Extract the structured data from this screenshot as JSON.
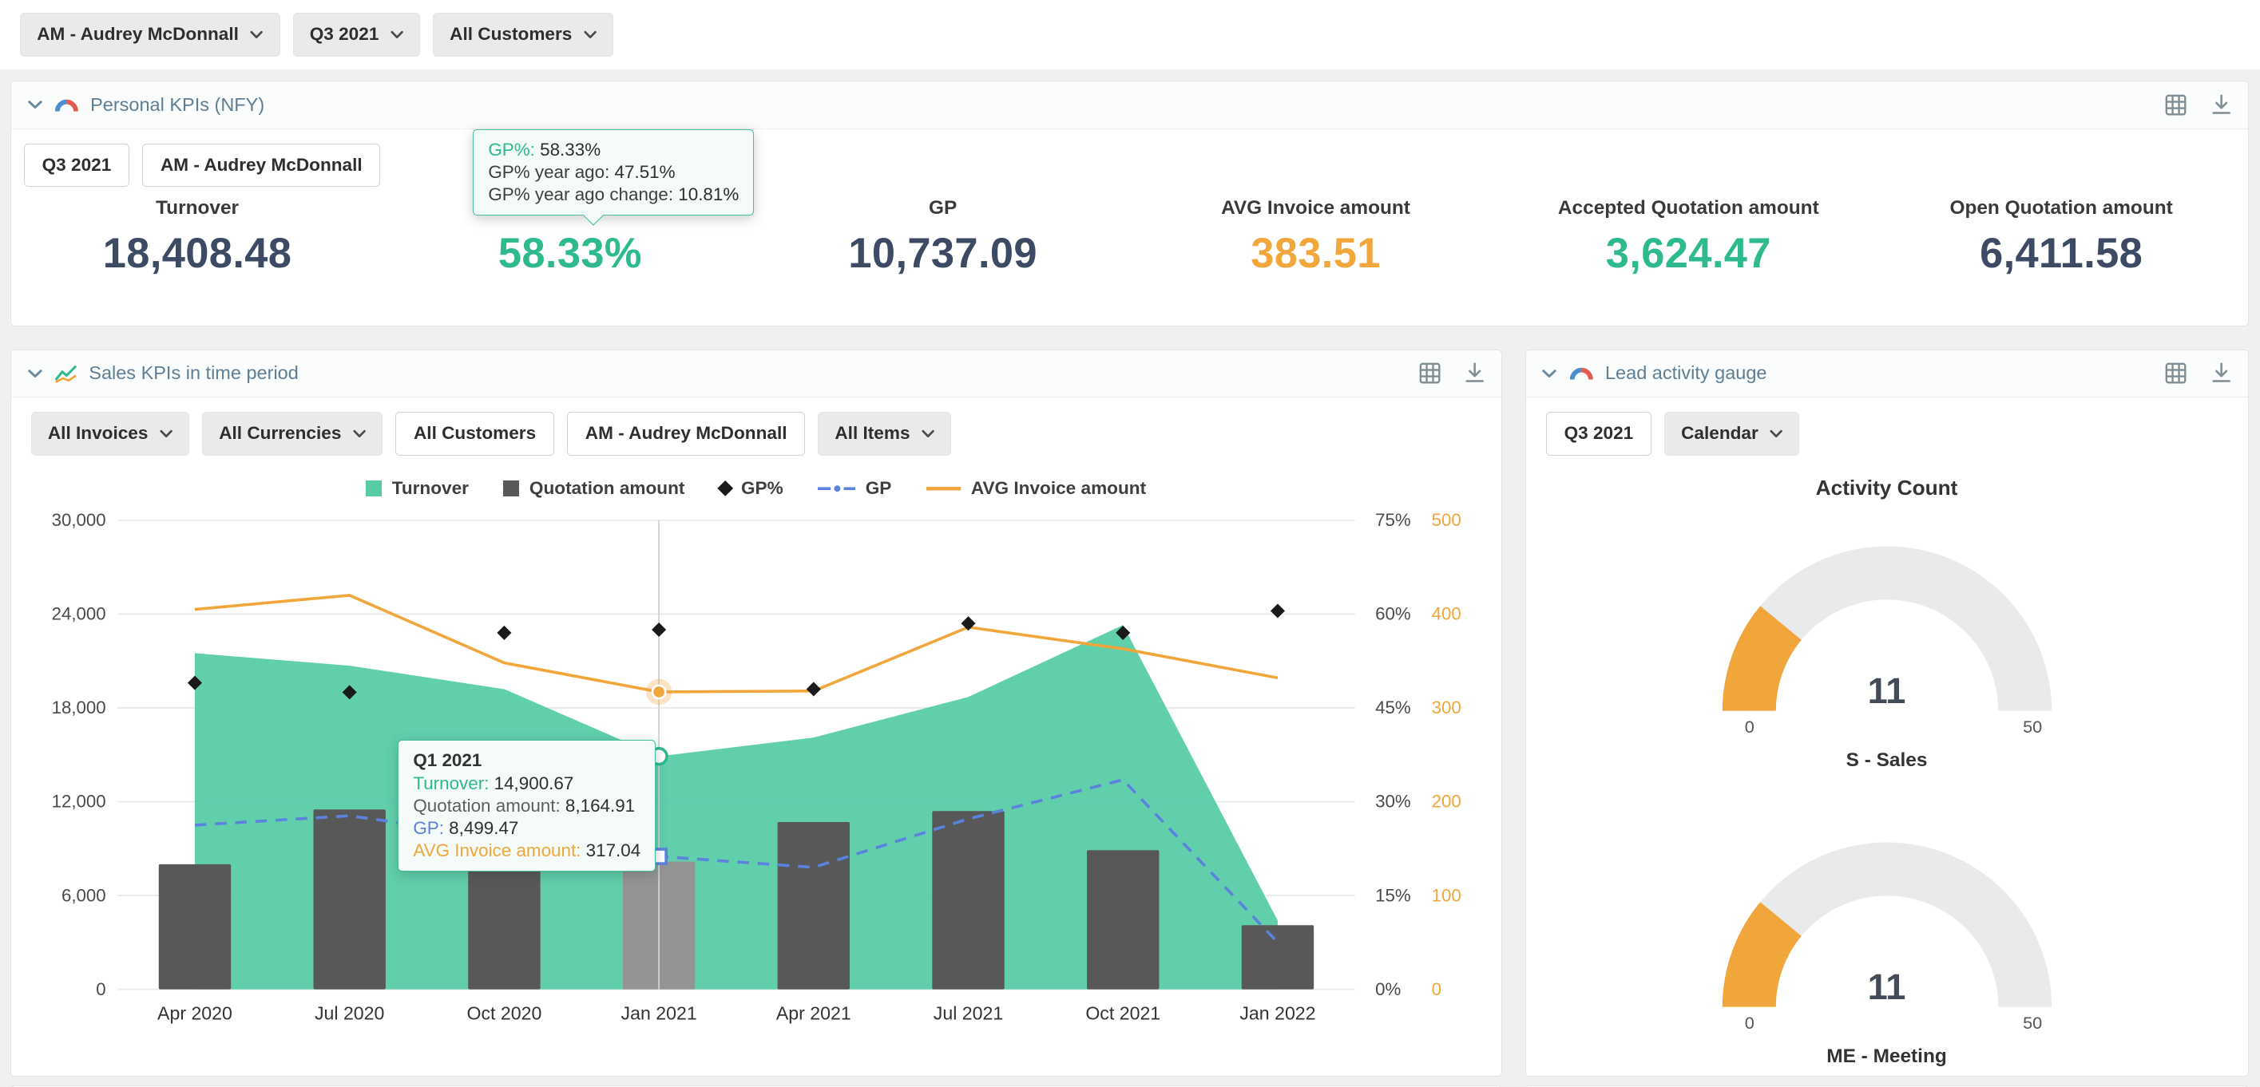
{
  "topbar": {
    "filters": [
      {
        "name": "account-manager-filter",
        "label": "AM - Audrey McDonnall"
      },
      {
        "name": "period-filter",
        "label": "Q3 2021"
      },
      {
        "name": "customers-filter",
        "label": "All Customers"
      }
    ]
  },
  "kpi_panel": {
    "title": "Personal KPIs (NFY)",
    "chips": [
      "Q3 2021",
      "AM - Audrey McDonnall"
    ],
    "tooltip": {
      "rows": [
        {
          "label": "GP%:",
          "value": "58.33%",
          "color": "#2eb98f"
        },
        {
          "label": "GP% year ago:",
          "value": "47.51%",
          "color": "#3f3f3f"
        },
        {
          "label": "GP% year ago change:",
          "value": "10.81%",
          "color": "#3f3f3f"
        }
      ]
    },
    "kpis": [
      {
        "name": "kpi-turnover",
        "label": "Turnover",
        "value": "18,408.48",
        "color": "dark"
      },
      {
        "name": "kpi-gp-percent",
        "label": "GP%",
        "value": "58.33%",
        "color": "teal"
      },
      {
        "name": "kpi-gp",
        "label": "GP",
        "value": "10,737.09",
        "color": "dark"
      },
      {
        "name": "kpi-avg-invoice",
        "label": "AVG Invoice amount",
        "value": "383.51",
        "color": "orange"
      },
      {
        "name": "kpi-accepted-quotation",
        "label": "Accepted Quotation amount",
        "value": "3,624.47",
        "color": "teal"
      },
      {
        "name": "kpi-open-quotation",
        "label": "Open Quotation amount",
        "value": "6,411.58",
        "color": "dark"
      }
    ]
  },
  "sales_panel": {
    "title": "Sales KPIs in time period",
    "filters": [
      {
        "name": "invoices-filter",
        "label": "All Invoices",
        "type": "dropdown"
      },
      {
        "name": "currencies-filter",
        "label": "All Currencies",
        "type": "dropdown"
      },
      {
        "name": "customers-chip",
        "label": "All Customers",
        "type": "chip"
      },
      {
        "name": "account-manager-chip",
        "label": "AM - Audrey McDonnall",
        "type": "chip"
      },
      {
        "name": "items-filter",
        "label": "All Items",
        "type": "dropdown"
      }
    ]
  },
  "gauge_panel": {
    "title": "Lead activity gauge",
    "filters": [
      {
        "name": "period-chip",
        "label": "Q3 2021",
        "type": "chip"
      },
      {
        "name": "calendar-filter",
        "label": "Calendar",
        "type": "dropdown"
      }
    ]
  },
  "chart_data": [
    {
      "type": "combo",
      "title": "Sales KPIs in time period",
      "x": [
        "Apr 2020",
        "Jul 2020",
        "Oct 2020",
        "Jan 2021",
        "Apr 2021",
        "Jul 2021",
        "Oct 2021",
        "Jan 2022"
      ],
      "left_axis": {
        "min": 0,
        "max": 30000,
        "ticks": [
          0,
          6000,
          12000,
          18000,
          24000,
          30000
        ],
        "tick_labels": [
          "0",
          "6,000",
          "12,000",
          "18,000",
          "24,000",
          "30,000"
        ]
      },
      "percent_axis": {
        "min": 0,
        "max": 75,
        "tick_labels": [
          "0%",
          "15%",
          "30%",
          "45%",
          "60%",
          "75%"
        ]
      },
      "amount_axis": {
        "min": 0,
        "max": 500,
        "tick_labels": [
          "0",
          "100",
          "200",
          "300",
          "400",
          "500"
        ]
      },
      "series": [
        {
          "name": "Turnover",
          "type": "area",
          "axis": "left",
          "color": "#55cba6",
          "values": [
            21500,
            20700,
            19200,
            14900.67,
            16100,
            18700,
            23300,
            4400
          ]
        },
        {
          "name": "Quotation amount",
          "type": "bar",
          "axis": "left",
          "color": "#585858",
          "values": [
            8000,
            11500,
            11200,
            8164.91,
            10700,
            11400,
            8900,
            4100
          ]
        },
        {
          "name": "GP%",
          "type": "point-diamond",
          "axis": "percent",
          "color": "#1a1a1a",
          "values": [
            49,
            47.5,
            57,
            57.5,
            48,
            58.5,
            57,
            60.5
          ]
        },
        {
          "name": "GP",
          "type": "line-dashed",
          "axis": "left",
          "color": "#5b82dd",
          "values": [
            10500,
            11100,
            9700,
            8499.47,
            7800,
            10900,
            13400,
            3000
          ]
        },
        {
          "name": "AVG Invoice amount",
          "type": "line",
          "axis": "amount",
          "color": "#f0a63a",
          "values": [
            405,
            420,
            348,
            317.04,
            318,
            386,
            363,
            332
          ]
        }
      ],
      "hover": {
        "index": 3,
        "tooltip_title": "Q1 2021",
        "tooltip_rows": [
          {
            "label": "Turnover:",
            "value": "14,900.67",
            "color": "#2eb98f"
          },
          {
            "label": "Quotation amount:",
            "value": "8,164.91",
            "color": "#5e5e5e"
          },
          {
            "label": "GP:",
            "value": "8,499.47",
            "color": "#5b82dd"
          },
          {
            "label": "AVG Invoice amount:",
            "value": "317.04",
            "color": "#f0a63a"
          }
        ]
      }
    },
    {
      "type": "gauge",
      "title": "Activity Count",
      "gauges": [
        {
          "name": "gauge-sales",
          "value": 11,
          "display": "11",
          "min": "0",
          "max": "50",
          "max_value": 50,
          "label": "S - Sales"
        },
        {
          "name": "gauge-meeting",
          "value": 11,
          "display": "11",
          "min": "0",
          "max": "50",
          "max_value": 50,
          "label": "ME - Meeting"
        }
      ],
      "track_color": "#e9eaeb",
      "fill_color": "#f0a63a"
    }
  ],
  "colors": {
    "teal": "#2eb98f",
    "area_teal": "#55cba6",
    "orange": "#f0a63a",
    "blue": "#5b82dd",
    "dark_value": "#3d4a63",
    "bar_gray": "#585858",
    "bar_hover_gray": "#949494",
    "panel_title": "#5d7e95"
  }
}
